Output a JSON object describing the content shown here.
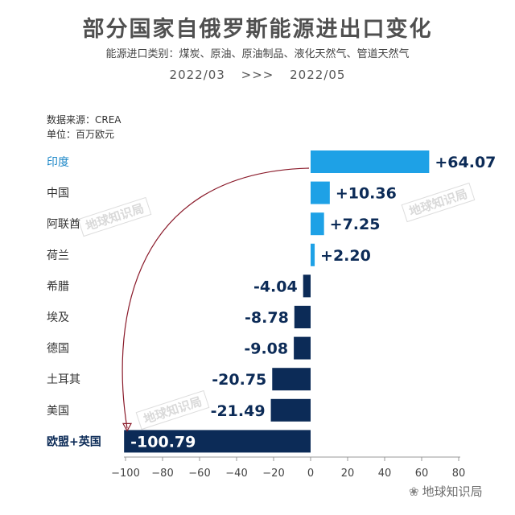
{
  "header": {
    "title": "部分国家自俄罗斯能源进出口变化",
    "subtitle": "能源进口类别：煤炭、原油、原油制品、液化天然气、管道天然气",
    "period_from": "2022/03",
    "period_arrow": ">>>",
    "period_to": "2022/05"
  },
  "source": {
    "line1": "数据来源：CREA",
    "line2": "单位：百万欧元"
  },
  "watermark": "地球知识局",
  "corner_logo": "地球知识局",
  "colors": {
    "positive": "#1ea1e6",
    "negative": "#0c2b57",
    "highlight_label": "#1e88c8",
    "arrow": "#8a1a2a"
  },
  "chart_data": {
    "type": "bar",
    "orientation": "horizontal",
    "title": "部分国家自俄罗斯能源进出口变化",
    "categories": [
      "印度",
      "中国",
      "阿联酋",
      "荷兰",
      "希腊",
      "埃及",
      "德国",
      "土耳其",
      "美国",
      "欧盟+英国"
    ],
    "values": [
      64.07,
      10.36,
      7.25,
      2.2,
      -4.04,
      -8.78,
      -9.08,
      -20.75,
      -21.49,
      -100.79
    ],
    "value_labels": [
      "+64.07",
      "+10.36",
      "+7.25",
      "+2.20",
      "-4.04",
      "-8.78",
      "-9.08",
      "-20.75",
      "-21.49",
      "-100.79"
    ],
    "xlim": [
      -100,
      80
    ],
    "xticks": [
      -100,
      -80,
      -60,
      -40,
      -20,
      0,
      20,
      40,
      60,
      80
    ],
    "xtick_labels": [
      "−100",
      "−80",
      "−60",
      "−40",
      "−20",
      "0",
      "20",
      "40",
      "60",
      "80"
    ],
    "grid": false,
    "annotation": "arrow from 印度 to 欧盟+英国"
  }
}
